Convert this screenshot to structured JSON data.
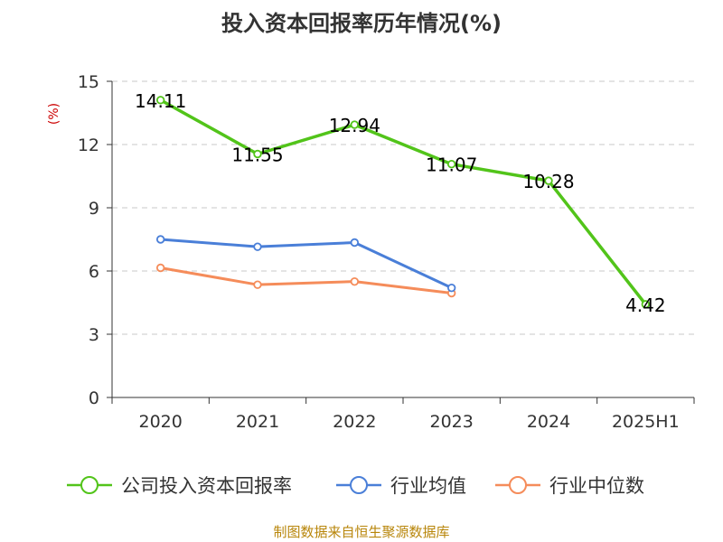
{
  "chart_data": {
    "type": "line",
    "title": "投入资本回报率历年情况(%)",
    "ylabel": "(%)",
    "categories": [
      "2020",
      "2021",
      "2022",
      "2023",
      "2024",
      "2025H1"
    ],
    "ylim": [
      0,
      15
    ],
    "yticks": [
      0,
      3,
      6,
      9,
      12,
      15
    ],
    "grid": "horizontal dashed",
    "legend_position": "bottom",
    "series": [
      {
        "name": "公司投入资本回报率",
        "color": "#52c41a",
        "values": [
          14.11,
          11.55,
          12.94,
          11.07,
          10.28,
          4.42
        ],
        "labels": [
          "14.11",
          "11.55",
          "12.94",
          "11.07",
          "10.28",
          "4.42"
        ]
      },
      {
        "name": "行业均值",
        "color": "#4a7fd8",
        "values": [
          7.5,
          7.15,
          7.35,
          5.2,
          null,
          null
        ]
      },
      {
        "name": "行业中位数",
        "color": "#f58c5a",
        "values": [
          6.15,
          5.35,
          5.5,
          4.95,
          null,
          null
        ]
      }
    ]
  },
  "footer": {
    "source": "制图数据来自恒生聚源数据库"
  }
}
